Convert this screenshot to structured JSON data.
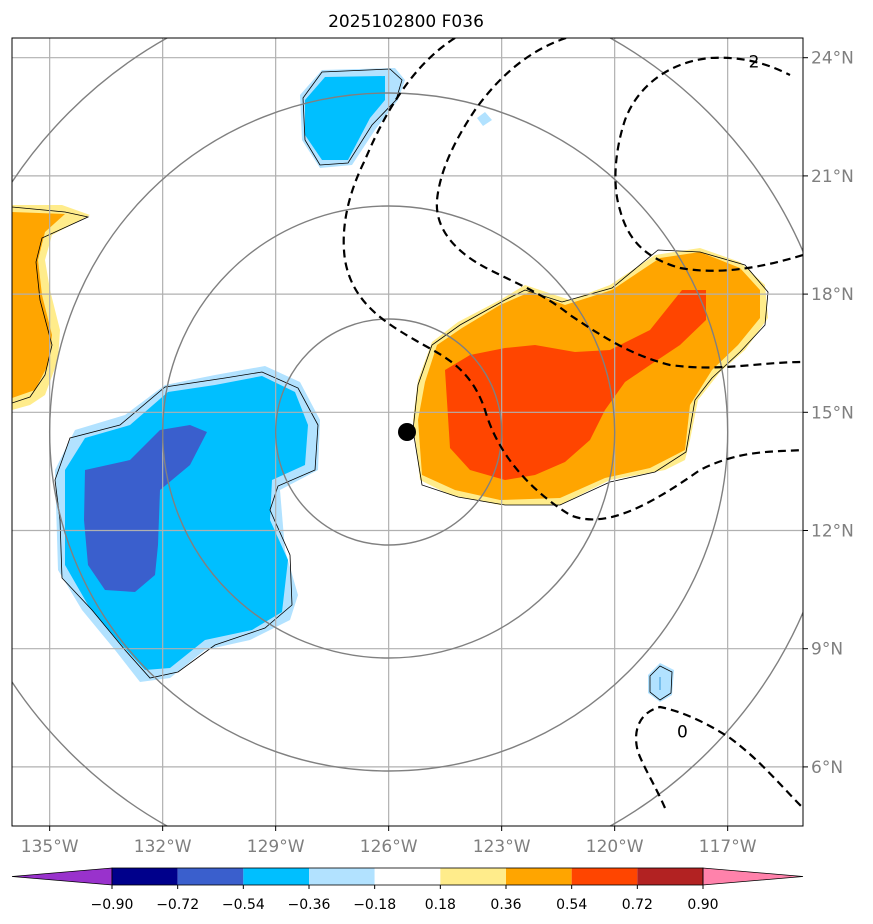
{
  "title": "2025102800 F036",
  "map": {
    "lon_range": [
      -136,
      -115
    ],
    "lat_range": [
      4.5,
      24.5
    ],
    "center": {
      "lon": -126,
      "lat": 14.5
    },
    "range_rings_deg": [
      3,
      6,
      9,
      12
    ],
    "lon_ticks": [
      {
        "value": -135,
        "label": "135°W"
      },
      {
        "value": -132,
        "label": "132°W"
      },
      {
        "value": -129,
        "label": "129°W"
      },
      {
        "value": -126,
        "label": "126°W"
      },
      {
        "value": -123,
        "label": "123°W"
      },
      {
        "value": -120,
        "label": "120°W"
      },
      {
        "value": -117,
        "label": "117°W"
      }
    ],
    "lat_ticks": [
      {
        "value": 24,
        "label": "24°N"
      },
      {
        "value": 21,
        "label": "21°N"
      },
      {
        "value": 18,
        "label": "18°N"
      },
      {
        "value": 15,
        "label": "15°N"
      },
      {
        "value": 12,
        "label": "12°N"
      },
      {
        "value": 9,
        "label": "9°N"
      },
      {
        "value": 6,
        "label": "6°N"
      }
    ],
    "contour_labels": [
      {
        "text": "2",
        "lon": -116.3,
        "lat": 23.9
      },
      {
        "text": "0",
        "lon": -118.2,
        "lat": 6.9
      }
    ]
  },
  "colorbar": {
    "levels": [
      "−0.90",
      "−0.72",
      "−0.54",
      "−0.36",
      "−0.18",
      "0.18",
      "0.36",
      "0.54",
      "0.72",
      "0.90"
    ],
    "colors": [
      "#9932cc",
      "#00008b",
      "#3a5fcd",
      "#00bfff",
      "#b2e2ff",
      "#ffffff",
      "#ffec8b",
      "#ffa500",
      "#ff4500",
      "#b22222",
      "#ff82ab"
    ]
  },
  "fill_colors": {
    "light_blue": "#b2e2ff",
    "blue": "#00bfff",
    "dark_blue": "#3a5fcd",
    "light_yellow": "#ffec8b",
    "orange": "#ffa500",
    "red_orange": "#ff4500"
  }
}
